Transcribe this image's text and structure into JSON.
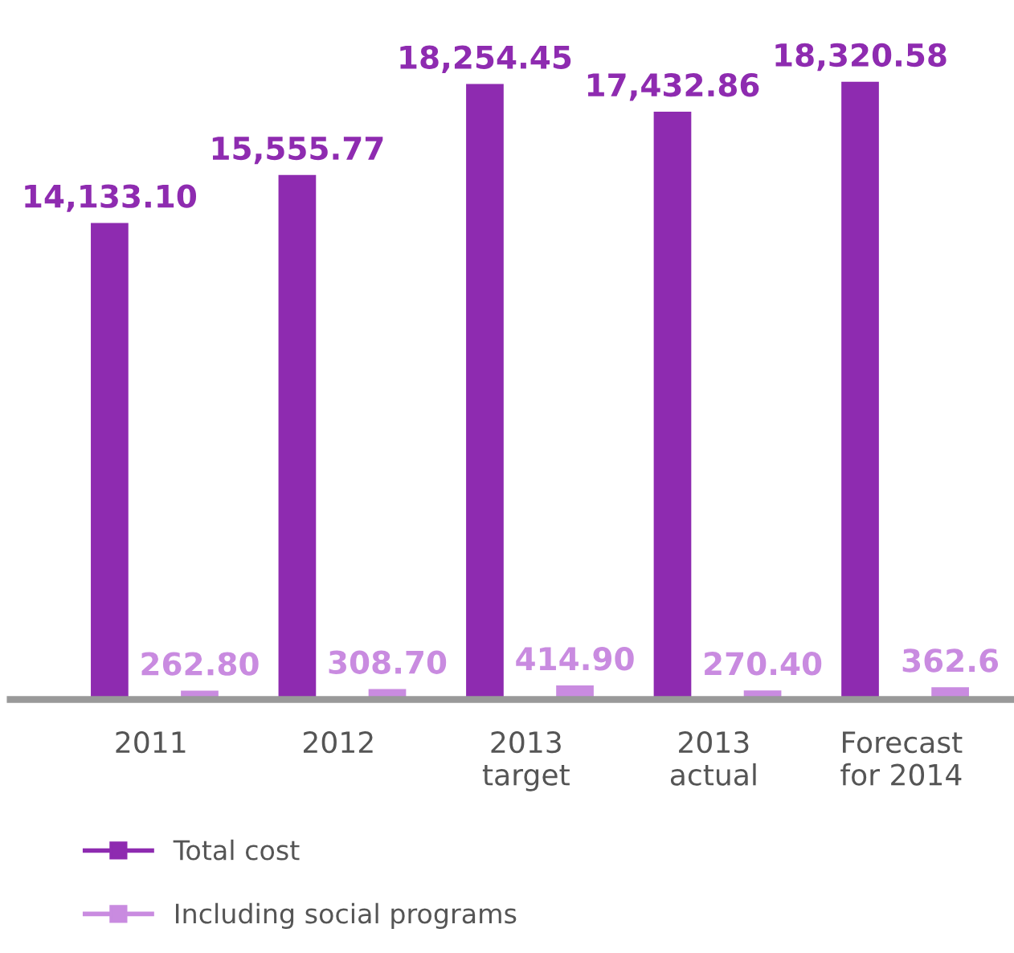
{
  "chart_data": {
    "type": "bar",
    "categories": [
      "2011",
      "2012",
      "2013\ntarget",
      "2013\nactual",
      "Forecast\nfor 2014"
    ],
    "series": [
      {
        "name": "Total cost",
        "color": "#8e2bb0",
        "values": [
          14133.1,
          15555.77,
          18254.45,
          17432.86,
          18320.58
        ],
        "value_labels": [
          "14,133.10",
          "15,555.77",
          "18,254.45",
          "17,432.86",
          "18,320.58"
        ]
      },
      {
        "name": "Including social programs",
        "color": "#c98be0",
        "values": [
          262.8,
          308.7,
          414.9,
          270.4,
          362.6
        ],
        "value_labels": [
          "262.80",
          "308.70",
          "414.90",
          "270.40",
          "362.6"
        ]
      }
    ],
    "legend": "bottom left",
    "grid": false
  }
}
